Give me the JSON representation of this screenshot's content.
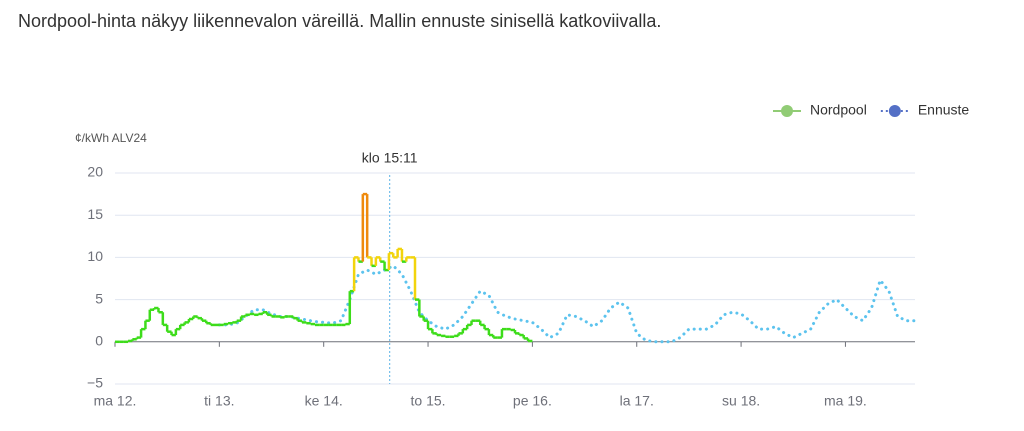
{
  "header": {
    "text": "Nordpool-hinta näkyy liikennevalon väreillä. Mallin ennuste sinisellä katkoviivalla."
  },
  "chart_data": {
    "type": "line",
    "y_label": "¢/kWh ALV24",
    "annotation": {
      "text": "klo 15:11",
      "x": 63.18
    },
    "xlim": [
      0,
      184
    ],
    "xticks": [
      {
        "value": 0,
        "label": "ma 12."
      },
      {
        "value": 24,
        "label": "ti 13."
      },
      {
        "value": 48,
        "label": "ke 14."
      },
      {
        "value": 72,
        "label": "to 15."
      },
      {
        "value": 96,
        "label": "pe 16."
      },
      {
        "value": 120,
        "label": "la 17."
      },
      {
        "value": 144,
        "label": "su 18."
      },
      {
        "value": 168,
        "label": "ma 19."
      }
    ],
    "ylim": [
      -5,
      20
    ],
    "yticks": [
      20,
      15,
      10,
      5,
      0,
      {
        "value": -5,
        "label": "−5"
      }
    ],
    "grid": true,
    "legend": "top-right",
    "series": [
      {
        "name": "Nordpool",
        "color": "#91cc75",
        "line_color": "#3ddc1a",
        "style": "step",
        "color_steps": [
          {
            "from": 10,
            "color": "#f2d40c"
          },
          {
            "from": 15,
            "color": "#ef8a0c"
          }
        ],
        "x": [
          0,
          1,
          2,
          3,
          4,
          5,
          6,
          7,
          8,
          9,
          10,
          11,
          12,
          13,
          14,
          15,
          16,
          17,
          18,
          19,
          20,
          21,
          22,
          23,
          24,
          25,
          26,
          27,
          28,
          29,
          30,
          31,
          32,
          33,
          34,
          35,
          36,
          37,
          38,
          39,
          40,
          41,
          42,
          43,
          44,
          45,
          46,
          47,
          48,
          49,
          50,
          51,
          52,
          53,
          54,
          55,
          56,
          57,
          58,
          59,
          60,
          61,
          62,
          63,
          64,
          65,
          66,
          67,
          68,
          69,
          70,
          71,
          72,
          73,
          74,
          75,
          76,
          77,
          78,
          79,
          80,
          81,
          82,
          83,
          84,
          85,
          86,
          87,
          88,
          89,
          90,
          91,
          92,
          93,
          94,
          95
        ],
        "values": [
          0,
          0,
          0,
          0.1,
          0.3,
          0.5,
          1.5,
          2.5,
          3.8,
          4,
          3.5,
          2,
          1.2,
          0.8,
          1.5,
          2,
          2.3,
          2.7,
          3,
          2.8,
          2.5,
          2.2,
          2,
          2,
          2,
          2.1,
          2.2,
          2.3,
          2.5,
          3,
          3.2,
          3.3,
          3.2,
          3.3,
          3.5,
          3.2,
          3,
          3,
          2.9,
          3,
          3,
          2.8,
          2.5,
          2.3,
          2.2,
          2.1,
          2,
          2,
          2,
          2,
          2,
          2,
          2,
          2.1,
          6,
          10,
          9.5,
          17.5,
          10,
          9,
          10,
          9.5,
          8.5,
          10.5,
          10,
          11,
          9.5,
          10,
          10,
          5,
          3,
          2.5,
          1.5,
          1,
          0.8,
          0.7,
          0.6,
          0.6,
          0.7,
          1,
          1.5,
          2,
          2.5,
          2.5,
          2,
          1.5,
          0.8,
          0.5,
          0.5,
          1.5,
          1.5,
          1.4,
          1,
          0.8,
          0.4,
          0.1
        ]
      },
      {
        "name": "Ennuste",
        "color": "#5470c6",
        "line_color": "#5cc3ee",
        "style": "dotted",
        "x": [
          24,
          26,
          28,
          30,
          32,
          34,
          36,
          38,
          40,
          42,
          44,
          46,
          48,
          50,
          52,
          54,
          56,
          58,
          60,
          62,
          64,
          66,
          68,
          70,
          72,
          74,
          76,
          78,
          80,
          82,
          84,
          86,
          88,
          90,
          92,
          94,
          96,
          98,
          100,
          102,
          104,
          106,
          108,
          110,
          112,
          114,
          116,
          118,
          120,
          122,
          124,
          126,
          128,
          130,
          132,
          134,
          136,
          138,
          140,
          142,
          144,
          146,
          148,
          150,
          152,
          154,
          156,
          158,
          160,
          162,
          164,
          166,
          168,
          170,
          172,
          174,
          176,
          178,
          180,
          182,
          184
        ],
        "values": [
          2,
          2,
          2.2,
          3,
          3.8,
          3.8,
          3.3,
          3,
          3,
          2.8,
          2.6,
          2.4,
          2.3,
          2.2,
          2.5,
          5,
          8,
          8.5,
          8,
          8.5,
          9,
          8,
          6,
          3.5,
          2.5,
          1.8,
          1.5,
          2,
          3,
          4.5,
          6,
          5.5,
          3.5,
          3,
          2.7,
          2.5,
          2.3,
          1.5,
          0.5,
          1,
          3.2,
          3,
          2.5,
          1.8,
          2.5,
          4,
          4.7,
          4,
          1,
          0.2,
          0,
          0,
          0,
          0.5,
          1.5,
          1.5,
          1.5,
          2,
          3.2,
          3.5,
          3.3,
          2.5,
          1.5,
          1.5,
          1.8,
          1,
          0.5,
          1,
          1.5,
          3.5,
          4.5,
          5,
          4,
          3,
          2.5,
          4,
          7.3,
          6,
          3,
          2.5,
          2.5
        ]
      }
    ]
  }
}
